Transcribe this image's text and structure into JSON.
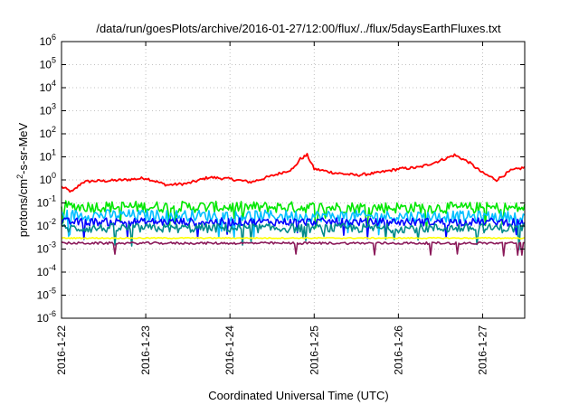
{
  "chart_data": {
    "type": "line",
    "title": "/data/run/goesPlots/archive/2016-01-27/12:00/flux/../flux/5daysEarthFluxes.txt",
    "xlabel": "Coordinated Universal Time (UTC)",
    "ylabel": "protons/cm2-s-sr-MeV",
    "ylabel_parts": {
      "base": "protons/cm",
      "sup": "2",
      "rest": "-s-sr-MeV"
    },
    "x_is_date": true,
    "xlim": [
      "2016-01-22",
      "2016-01-27T12:00"
    ],
    "x_ticks": [
      "2016-1-22",
      "2016-1-23",
      "2016-1-24",
      "2016-1-25",
      "2016-1-26",
      "2016-1-27"
    ],
    "y_scale": "log",
    "ylim": [
      1e-06,
      1000000.0
    ],
    "y_ticks": [
      {
        "base": "10",
        "exp": "-6"
      },
      {
        "base": "10",
        "exp": "-5"
      },
      {
        "base": "10",
        "exp": "-4"
      },
      {
        "base": "10",
        "exp": "-3"
      },
      {
        "base": "10",
        "exp": "-2"
      },
      {
        "base": "10",
        "exp": "-1"
      },
      {
        "base": "10",
        "exp": "0"
      },
      {
        "base": "10",
        "exp": "1"
      },
      {
        "base": "10",
        "exp": "2"
      },
      {
        "base": "10",
        "exp": "3"
      },
      {
        "base": "10",
        "exp": "4"
      },
      {
        "base": "10",
        "exp": "5"
      },
      {
        "base": "10",
        "exp": "6"
      }
    ],
    "grid": true,
    "series": [
      {
        "color": "#ff0000",
        "x": [
          "2016-01-22T00:00",
          "2016-01-22T03:00",
          "2016-01-22T06:00",
          "2016-01-22T09:00",
          "2016-01-22T12:00",
          "2016-01-22T18:00",
          "2016-01-23T00:00",
          "2016-01-23T06:00",
          "2016-01-23T12:00",
          "2016-01-23T18:00",
          "2016-01-24T00:00",
          "2016-01-24T06:00",
          "2016-01-24T12:00",
          "2016-01-24T18:00",
          "2016-01-24T20:00",
          "2016-01-24T22:00",
          "2016-01-25T00:00",
          "2016-01-25T06:00",
          "2016-01-25T12:00",
          "2016-01-25T18:00",
          "2016-01-26T00:00",
          "2016-01-26T06:00",
          "2016-01-26T12:00",
          "2016-01-26T16:00",
          "2016-01-26T20:00",
          "2016-01-27T00:00",
          "2016-01-27T04:00",
          "2016-01-27T08:00",
          "2016-01-27T12:00"
        ],
        "values": [
          0.5,
          0.3,
          0.8,
          0.9,
          0.9,
          1.0,
          1.2,
          0.6,
          0.7,
          1.3,
          1.1,
          0.8,
          1.5,
          3.0,
          8.0,
          12.0,
          3.0,
          2.0,
          1.6,
          2.0,
          3.0,
          3.5,
          7.0,
          12.0,
          6.0,
          2.0,
          1.0,
          2.5,
          3.5
        ]
      },
      {
        "color": "#00e600",
        "x": [
          "2016-01-22T00:00",
          "2016-01-27T12:00"
        ],
        "values": [
          0.07,
          0.06
        ],
        "noise": 0.5
      },
      {
        "color": "#00bfff",
        "x": [
          "2016-01-22T00:00",
          "2016-01-27T12:00"
        ],
        "values": [
          0.03,
          0.025
        ],
        "noise": 0.5
      },
      {
        "color": "#0000ff",
        "x": [
          "2016-01-22T00:00",
          "2016-01-27T12:00"
        ],
        "values": [
          0.015,
          0.015
        ],
        "noise": 0.35
      },
      {
        "color": "#008b8b",
        "x": [
          "2016-01-22T00:00",
          "2016-01-27T12:00"
        ],
        "values": [
          0.008,
          0.008
        ],
        "noise": 0.4
      },
      {
        "color": "#ffff00",
        "x": [
          "2016-01-22T00:00",
          "2016-01-27T12:00"
        ],
        "values": [
          0.003,
          0.003
        ],
        "noise": 0.05
      },
      {
        "color": "#8b1a5a",
        "x": [
          "2016-01-22T00:00",
          "2016-01-27T12:00"
        ],
        "values": [
          0.0018,
          0.0018
        ],
        "noise": 0.1
      }
    ]
  }
}
